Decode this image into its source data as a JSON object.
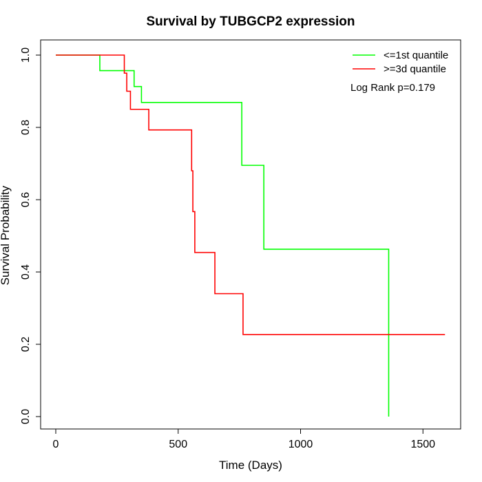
{
  "chart_data": {
    "type": "line",
    "title": "Survival by TUBGCP2 expression",
    "xlabel": "Time (Days)",
    "ylabel": "Survival Probability",
    "xlim": [
      0,
      1600
    ],
    "ylim": [
      0,
      1.0
    ],
    "x_ticks": [
      0,
      500,
      1000,
      1500
    ],
    "x_tick_labels": [
      "0",
      "500",
      "1000",
      "1500"
    ],
    "y_ticks": [
      0.0,
      0.2,
      0.4,
      0.6,
      0.8,
      1.0
    ],
    "y_tick_labels": [
      "0.0",
      "0.2",
      "0.4",
      "0.6",
      "0.8",
      "1.0"
    ],
    "grid": false,
    "legend_position": "top-right",
    "annotation": "Log Rank p=0.179",
    "series": [
      {
        "name": "<=1st quantile",
        "color": "#00ff00",
        "step": true,
        "x": [
          0,
          180,
          320,
          350,
          760,
          850,
          1360,
          1360
        ],
        "y": [
          1.0,
          0.957,
          0.913,
          0.869,
          0.695,
          0.463,
          0.463,
          0.0
        ]
      },
      {
        "name": ">=3d quantile",
        "color": "#ff0000",
        "step": true,
        "x": [
          0,
          280,
          290,
          305,
          380,
          555,
          560,
          568,
          650,
          765,
          1590
        ],
        "y": [
          1.0,
          0.95,
          0.9,
          0.85,
          0.793,
          0.68,
          0.567,
          0.454,
          0.34,
          0.227,
          0.227
        ]
      }
    ]
  }
}
